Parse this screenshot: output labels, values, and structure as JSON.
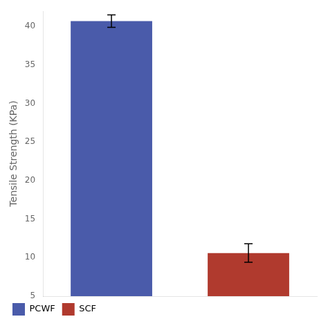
{
  "chart_data": {
    "type": "bar",
    "categories": [
      "PCWF",
      "SCF"
    ],
    "values": [
      40.7,
      10.6
    ],
    "errors": [
      0.8,
      1.2
    ],
    "colors": [
      "#4a5baa",
      "#b03a2e"
    ],
    "ylabel": "Tensile Strength (KPa)",
    "ylim": [
      5,
      42
    ],
    "yticks": [
      5,
      10,
      15,
      20,
      25,
      30,
      35,
      40
    ],
    "grid": false,
    "legend": "bottom",
    "tick_labels": "y"
  }
}
